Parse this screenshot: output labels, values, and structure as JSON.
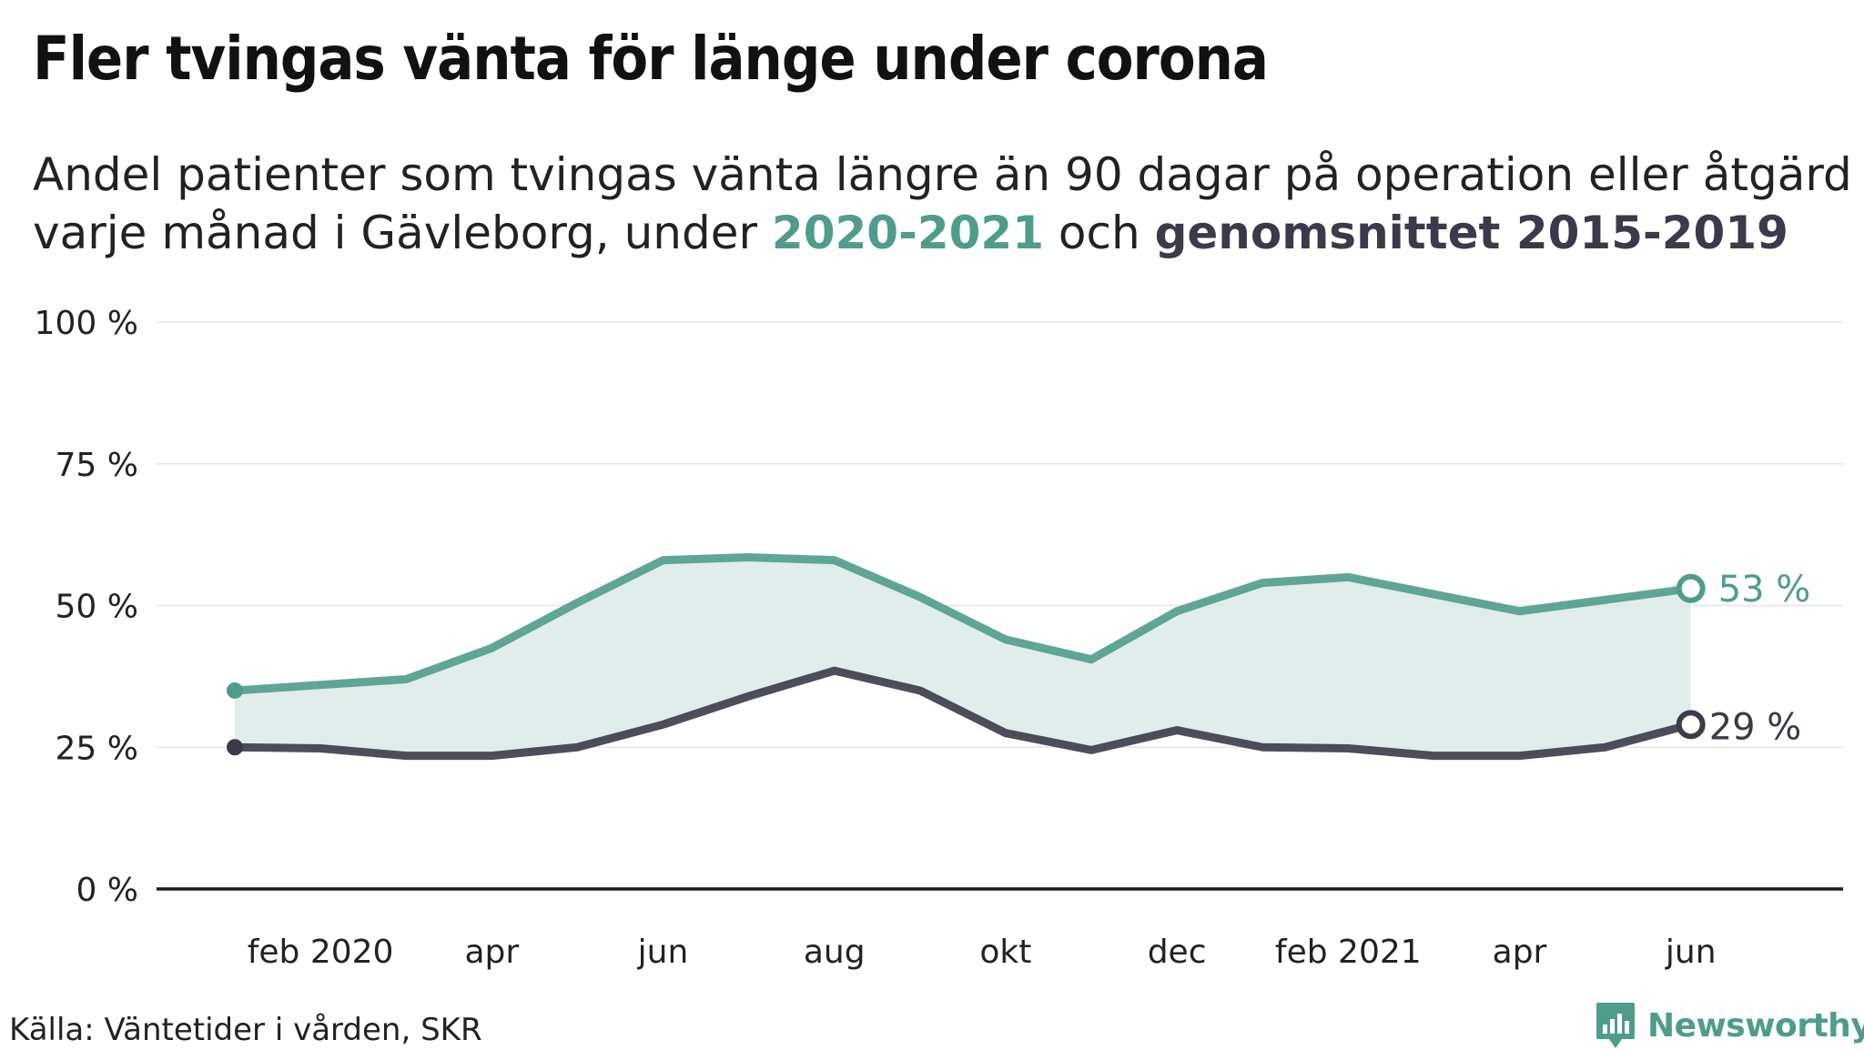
{
  "header": {
    "title": "Fler tvingas vänta för länge under corona",
    "subtitle_part1": "Andel patienter som tvingas vänta längre än 90 dagar på operation eller åtgärd varje månad i Gävleborg, under ",
    "subtitle_hl_a": "2020-2021",
    "subtitle_part2": " och ",
    "subtitle_hl_b": "genomsnittet 2015-2019"
  },
  "colors": {
    "series_2020_2021": "#4f9c8c",
    "series_avg": "#3b3a4a",
    "band_fill": "#dceae6",
    "grid": "#e6e6e6",
    "axis": "#1a1a1a",
    "logo": "#4f9c8c"
  },
  "chart_data": {
    "type": "line",
    "title": "Fler tvingas vänta för länge under corona",
    "x": [
      "jan 2020",
      "feb 2020",
      "mar 2020",
      "apr 2020",
      "maj 2020",
      "jun 2020",
      "jul 2020",
      "aug 2020",
      "sep 2020",
      "okt 2020",
      "nov 2020",
      "dec 2020",
      "jan 2021",
      "feb 2021",
      "mar 2021",
      "apr 2021",
      "maj 2021",
      "jun 2021"
    ],
    "x_tick_labels": [
      "feb 2020",
      "apr",
      "jun",
      "aug",
      "okt",
      "dec",
      "feb 2021",
      "apr",
      "jun"
    ],
    "x_tick_indices": [
      1,
      3,
      5,
      7,
      9,
      11,
      13,
      15,
      17
    ],
    "series": [
      {
        "name": "2020-2021",
        "values": [
          35,
          36,
          37,
          42.5,
          50.5,
          58,
          58.5,
          58,
          51.5,
          44,
          40.5,
          49,
          54,
          55,
          52,
          49,
          51,
          53
        ],
        "end_label": "53 %"
      },
      {
        "name": "genomsnittet 2015-2019",
        "values": [
          25,
          24.8,
          23.5,
          23.5,
          25,
          29,
          34,
          38.5,
          35,
          27.5,
          24.5,
          28,
          25,
          24.8,
          23.5,
          23.5,
          25,
          29
        ],
        "end_label": "29 %"
      }
    ],
    "ylim": [
      0,
      100
    ],
    "y_ticks": [
      0,
      25,
      50,
      75,
      100
    ],
    "y_tick_labels": [
      "0 %",
      "25 %",
      "50 %",
      "75 %",
      "100 %"
    ],
    "grid": true,
    "legend": "none"
  },
  "footer": {
    "source": "Källa: Väntetider i vården, SKR",
    "logo_text": "Newsworthy"
  }
}
